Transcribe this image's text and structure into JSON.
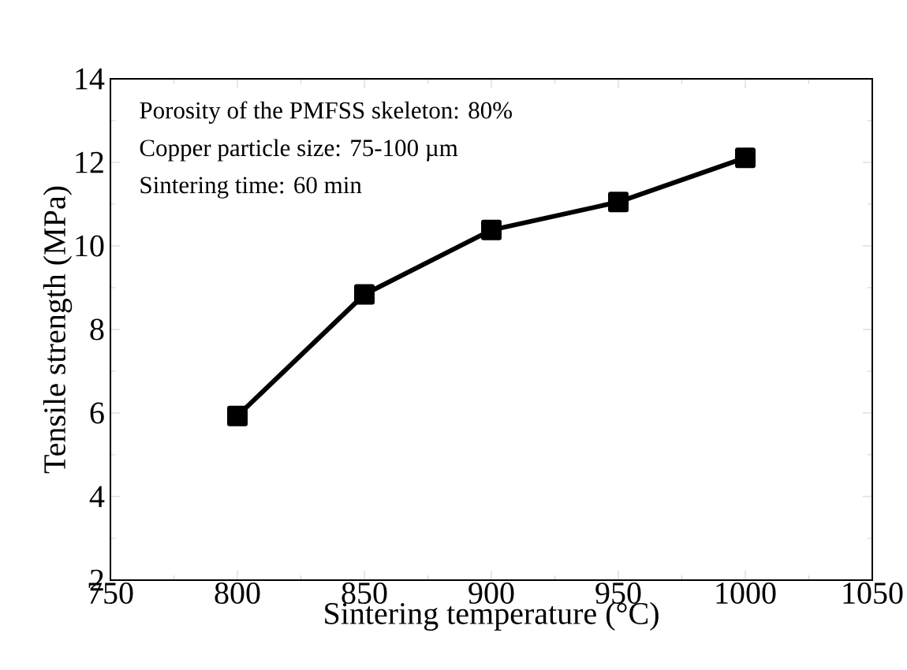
{
  "chart_data": {
    "type": "line",
    "xlabel": "Sintering temperature (°C)",
    "ylabel": "Tensile strength (MPa)",
    "x": [
      800,
      850,
      900,
      950,
      1000
    ],
    "series": [
      {
        "color": "#000000",
        "values": [
          5.93,
          8.84,
          10.38,
          11.05,
          12.11
        ]
      }
    ],
    "xlim": [
      750,
      1050
    ],
    "xticks": [
      750,
      800,
      850,
      900,
      950,
      1000,
      1050
    ],
    "ylim": [
      2,
      14
    ],
    "yticks": [
      2,
      4,
      6,
      8,
      10,
      12,
      14
    ],
    "marker": "square",
    "line_style": "solid",
    "grid": false,
    "annotations": [
      "Porosity of the PMFSS skeleton: 80%",
      "Copper particle size: 75-100 µm",
      "Sintering time: 60 min"
    ]
  }
}
